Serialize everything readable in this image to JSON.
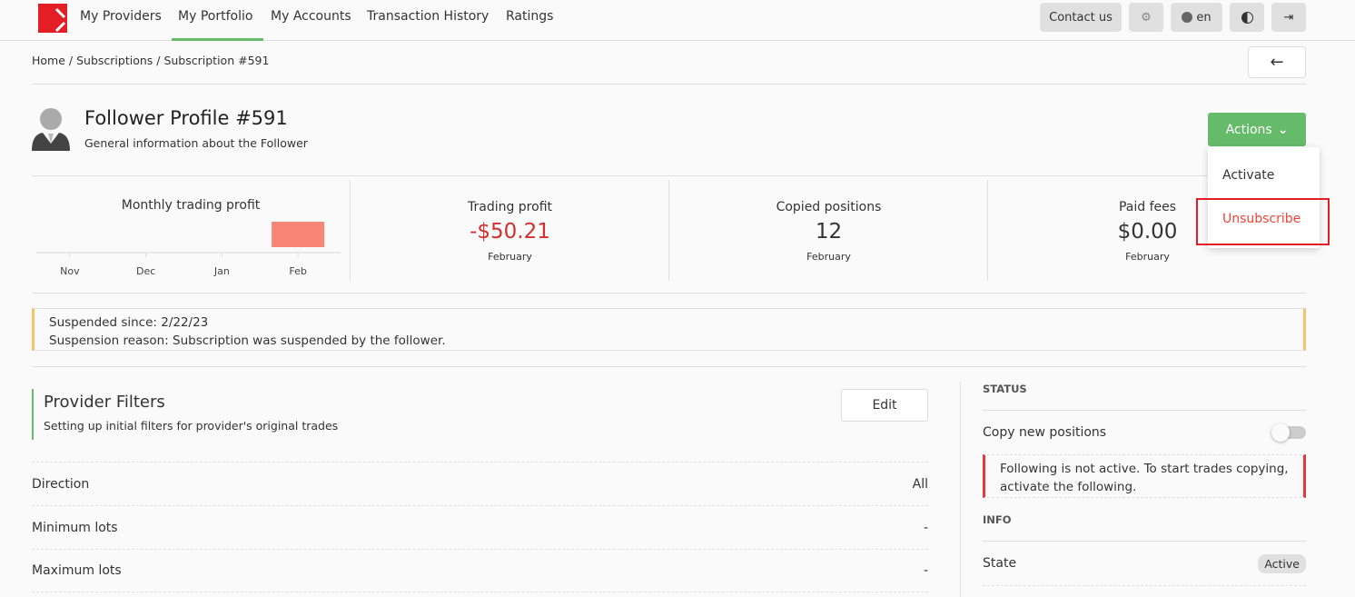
{
  "nav": {
    "items": [
      "My Providers",
      "My Portfolio",
      "My Accounts",
      "Transaction History",
      "Ratings"
    ],
    "active": "My Portfolio",
    "contact": "Contact us",
    "lang": "en"
  },
  "breadcrumb": [
    "Home",
    "Subscriptions",
    "Subscription #591"
  ],
  "header": {
    "title": "Follower Profile #591",
    "subtitle": "General information about the Follower",
    "actions": "Actions"
  },
  "dropdown": {
    "activate": "Activate",
    "unsubscribe": "Unsubscribe"
  },
  "stats": [
    {
      "label": "Trading profit",
      "value": "-$50.21",
      "period": "February"
    },
    {
      "label": "Copied positions",
      "value": "12",
      "period": "February"
    },
    {
      "label": "Paid fees",
      "value": "$0.00",
      "period": "February"
    }
  ],
  "chart_data": {
    "type": "bar",
    "title": "Monthly trading profit",
    "categories": [
      "Nov",
      "Dec",
      "Jan",
      "Feb"
    ],
    "values": [
      0,
      0,
      0,
      -50.21
    ],
    "bar_color": "#f78677"
  },
  "alert": {
    "line1": "Suspended since: 2/22/23",
    "line2": "Suspension reason: Subscription was suspended by the follower."
  },
  "filters": {
    "title": "Provider Filters",
    "subtitle": "Setting up initial filters for provider's original trades",
    "edit": "Edit",
    "rows": [
      {
        "label": "Direction",
        "value": "All"
      },
      {
        "label": "Minimum lots",
        "value": "-"
      },
      {
        "label": "Maximum lots",
        "value": "-"
      }
    ]
  },
  "status": {
    "heading": "STATUS",
    "copy_label": "Copy new positions",
    "copy_enabled": false,
    "warning": "Following is not active. To start trades copying, activate the following."
  },
  "info": {
    "heading": "INFO",
    "state_label": "State",
    "state_value": "Active"
  },
  "colors": {
    "accent": "#66bb6a",
    "danger": "#e53935",
    "warning": "#f5c36b",
    "brand": "#e31e24"
  }
}
